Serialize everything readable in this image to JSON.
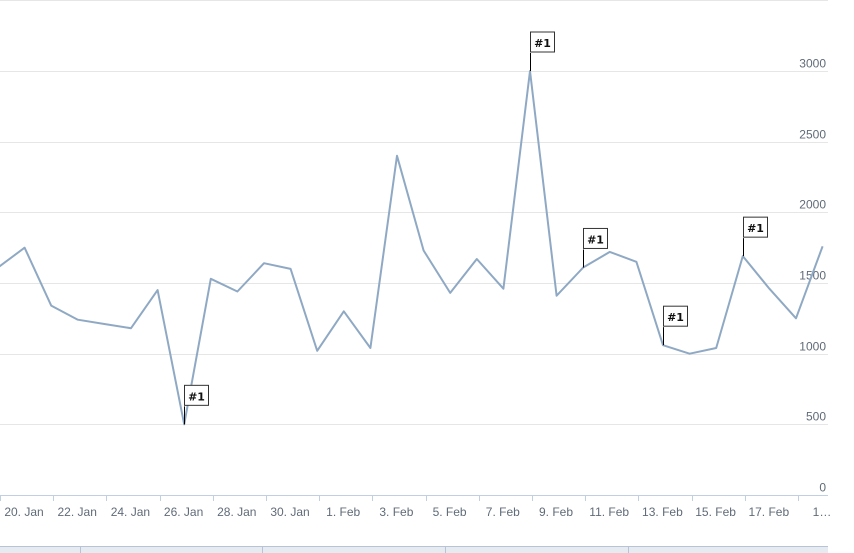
{
  "chart_data": {
    "type": "line",
    "y_ticks": [
      "0",
      "500",
      "1000",
      "1500",
      "2000",
      "2500",
      "3000"
    ],
    "ylim": [
      0,
      3500
    ],
    "grid": true,
    "x_tick_labels": [
      "20. Jan",
      "22. Jan",
      "24. Jan",
      "26. Jan",
      "28. Jan",
      "30. Jan",
      "1. Feb",
      "3. Feb",
      "5. Feb",
      "7. Feb",
      "9. Feb",
      "11. Feb",
      "13. Feb",
      "15. Feb",
      "17. Feb",
      "1…"
    ],
    "series": [
      {
        "color": "#8fa9c4",
        "x": [
          "2014-01-19",
          "2014-01-20",
          "2014-01-21",
          "2014-01-22",
          "2014-01-23",
          "2014-01-24",
          "2014-01-25",
          "2014-01-26",
          "2014-01-27",
          "2014-01-28",
          "2014-01-29",
          "2014-01-30",
          "2014-01-31",
          "2014-02-01",
          "2014-02-02",
          "2014-02-03",
          "2014-02-04",
          "2014-02-05",
          "2014-02-06",
          "2014-02-07",
          "2014-02-08",
          "2014-02-09",
          "2014-02-10",
          "2014-02-11",
          "2014-02-12",
          "2014-02-13",
          "2014-02-14",
          "2014-02-15",
          "2014-02-16",
          "2014-02-17",
          "2014-02-18",
          "2014-02-19"
        ],
        "values": [
          1610,
          1750,
          1340,
          1240,
          1210,
          1180,
          1450,
          500,
          1530,
          1440,
          1640,
          1600,
          1020,
          1300,
          1040,
          2400,
          1730,
          1430,
          1670,
          1460,
          3000,
          1410,
          1610,
          1720,
          1650,
          1060,
          1000,
          1040,
          1690,
          1460,
          1250,
          1760
        ]
      }
    ],
    "flags": [
      {
        "x": "2014-01-26",
        "value": 500,
        "label": "#1"
      },
      {
        "x": "2014-02-08",
        "value": 3000,
        "label": "#1"
      },
      {
        "x": "2014-02-10",
        "value": 1610,
        "label": "#1"
      },
      {
        "x": "2014-02-13",
        "value": 1060,
        "label": "#1"
      },
      {
        "x": "2014-02-16",
        "value": 1690,
        "label": "#1"
      }
    ]
  }
}
